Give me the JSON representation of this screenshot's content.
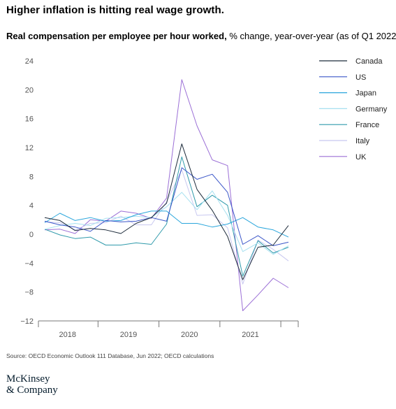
{
  "header": {
    "title": "Higher inflation is hitting real wage growth.",
    "subtitle_bold": "Real compensation per employee per hour worked,",
    "subtitle_rest": " % change, year-over-year (as of Q1 2022)"
  },
  "footer": {
    "source": "Source: OECD Economic Outlook 111 Database, Jun 2022; OECD calculations",
    "logo_line1": "McKinsey",
    "logo_line2": "& Company"
  },
  "chart_data": {
    "type": "line",
    "title": "Real compensation per employee per hour worked, % change, year-over-year (as of Q1 2022)",
    "xlabel": "",
    "ylabel": "",
    "ylim": [
      -12,
      24
    ],
    "yticks": [
      24,
      20,
      16,
      12,
      8,
      4,
      0,
      -4,
      -8,
      -12
    ],
    "x": [
      "2018 Q1",
      "2018 Q2",
      "2018 Q3",
      "2018 Q4",
      "2019 Q1",
      "2019 Q2",
      "2019 Q3",
      "2019 Q4",
      "2020 Q1",
      "2020 Q2",
      "2020 Q3",
      "2020 Q4",
      "2021 Q1",
      "2021 Q2",
      "2021 Q3",
      "2021 Q4",
      "2022 Q1"
    ],
    "year_labels": [
      "2018",
      "2019",
      "2020",
      "2021"
    ],
    "grid": false,
    "legend_position": "right",
    "series": [
      {
        "name": "Canada",
        "color": "#1c2a3a",
        "values": [
          2.3,
          1.9,
          0.5,
          0.8,
          0.6,
          0.1,
          1.5,
          2.3,
          4.3,
          12.5,
          6.2,
          3.3,
          -0.3,
          -6.3,
          -1.8,
          -1.5,
          1.2
        ]
      },
      {
        "name": "US",
        "color": "#3a55c8",
        "values": [
          1.8,
          1.3,
          1.0,
          0.4,
          1.9,
          1.7,
          1.8,
          2.3,
          1.8,
          9.2,
          7.6,
          8.3,
          5.8,
          -1.4,
          -0.2,
          -1.6,
          -1.1
        ]
      },
      {
        "name": "Japan",
        "color": "#2aa6dc",
        "values": [
          1.6,
          2.9,
          1.9,
          2.3,
          1.8,
          1.9,
          2.7,
          3.2,
          3.2,
          1.5,
          1.5,
          1.0,
          1.4,
          2.3,
          1.0,
          0.6,
          -0.4
        ]
      },
      {
        "name": "Germany",
        "color": "#a6e0f0",
        "values": [
          0.7,
          1.2,
          1.5,
          1.2,
          2.2,
          2.3,
          2.5,
          2.3,
          3.8,
          5.8,
          3.4,
          6.0,
          2.6,
          -2.4,
          -1.2,
          -2.8,
          -1.6
        ]
      },
      {
        "name": "France",
        "color": "#2f9aab",
        "values": [
          0.7,
          -0.1,
          -0.6,
          -0.4,
          -1.5,
          -1.5,
          -1.2,
          -1.4,
          1.4,
          10.7,
          3.8,
          5.4,
          4.0,
          -5.8,
          -0.9,
          -2.6,
          -1.8
        ]
      },
      {
        "name": "Italy",
        "color": "#c8c8f0",
        "values": [
          1.7,
          1.6,
          0.6,
          1.5,
          1.6,
          2.5,
          1.3,
          1.3,
          4.5,
          8.9,
          2.6,
          2.7,
          0.9,
          -6.9,
          -0.8,
          -2.1,
          -3.7
        ]
      },
      {
        "name": "UK",
        "color": "#9b6fd6",
        "values": [
          0.6,
          0.7,
          0.1,
          2.0,
          1.8,
          3.2,
          2.9,
          2.2,
          5.0,
          21.4,
          15.0,
          10.3,
          9.5,
          -10.6,
          -8.4,
          -6.1,
          -7.4
        ]
      }
    ]
  }
}
